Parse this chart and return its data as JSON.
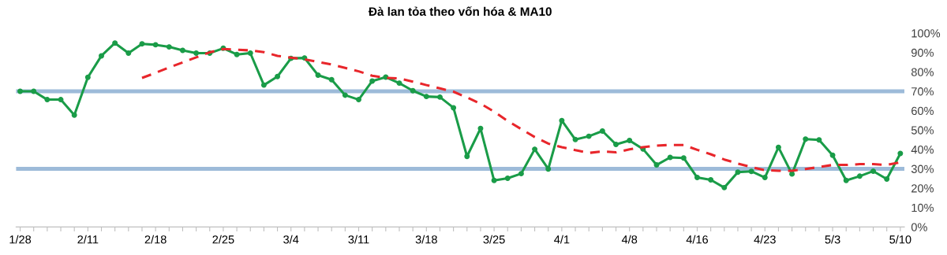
{
  "chart_data": {
    "type": "line",
    "title": "Đà lan tỏa theo vốn hóa & MA10",
    "categories": [
      "1/28",
      null,
      null,
      null,
      null,
      "2/11",
      null,
      null,
      null,
      null,
      "2/18",
      null,
      null,
      null,
      null,
      "2/25",
      null,
      null,
      null,
      null,
      "3/4",
      null,
      null,
      null,
      null,
      "3/11",
      null,
      null,
      null,
      null,
      "3/18",
      null,
      null,
      null,
      null,
      "3/25",
      null,
      null,
      null,
      null,
      "4/1",
      null,
      null,
      null,
      null,
      "4/8",
      null,
      null,
      null,
      null,
      "4/16",
      null,
      null,
      null,
      null,
      "4/23",
      null,
      null,
      null,
      null,
      "5/3",
      null,
      null,
      null,
      null,
      "5/10"
    ],
    "series": [
      {
        "color": "#1a9c48",
        "marker": "circle",
        "line_style": "solid",
        "values": [
          70,
          70,
          65.7,
          65.7,
          57.7,
          77.2,
          88.3,
          94.9,
          89.7,
          94.5,
          94.0,
          92.9,
          91.1,
          89.7,
          89.7,
          92.2,
          89.0,
          89.7,
          73.2,
          77.6,
          87.0,
          87.2,
          78.3,
          76.0,
          68.0,
          65.7,
          75.3,
          77.3,
          74.2,
          70.3,
          67.3,
          67.0,
          61.5,
          36.4,
          50.8,
          24.0,
          25.1,
          27.5,
          40.1,
          29.9,
          54.9,
          45.1,
          46.8,
          49.5,
          42.6,
          44.6,
          40.2,
          32.0,
          35.9,
          35.6,
          25.5,
          24.3,
          20.3,
          28.3,
          28.7,
          25.5,
          41.1,
          27.3,
          45.3,
          44.9,
          37.0,
          24.0,
          26.2,
          28.8,
          24.7,
          37.9
        ]
      },
      {
        "color": "#e8262b",
        "marker": "none",
        "line_style": "dashed",
        "values": [
          null,
          null,
          null,
          null,
          null,
          null,
          null,
          null,
          null,
          76.9,
          79.5,
          82.3,
          84.9,
          87.5,
          90.1,
          91.8,
          91.5,
          91.1,
          90.2,
          88.3,
          87.4,
          86.5,
          85.2,
          83.8,
          82.1,
          80.3,
          78.0,
          76.9,
          76.6,
          75.0,
          73.2,
          71.5,
          69.8,
          66.8,
          63.6,
          59.5,
          54.7,
          50.5,
          46.4,
          43.0,
          41.2,
          39.6,
          38.2,
          39.0,
          38.5,
          40.0,
          41.2,
          42.0,
          42.3,
          42.3,
          39.8,
          37.5,
          34.8,
          32.7,
          30.9,
          29.3,
          29.0,
          29.0,
          29.9,
          30.9,
          32.0,
          32.0,
          32.4,
          32.4,
          32.0,
          33.4
        ]
      }
    ],
    "ylim": [
      0,
      100
    ],
    "yticks": [
      {
        "value": 0,
        "label": "0%"
      },
      {
        "value": 10,
        "label": "10%"
      },
      {
        "value": 20,
        "label": "20%"
      },
      {
        "value": 30,
        "label": "30%"
      },
      {
        "value": 40,
        "label": "40%"
      },
      {
        "value": 50,
        "label": "50%"
      },
      {
        "value": 60,
        "label": "60%"
      },
      {
        "value": 70,
        "label": "70%"
      },
      {
        "value": 80,
        "label": "80%"
      },
      {
        "value": 90,
        "label": "90%"
      },
      {
        "value": 100,
        "label": "100%"
      }
    ],
    "ref_lines": [
      {
        "axis": "y",
        "value": 70,
        "color": "#9dbbd9"
      },
      {
        "axis": "y",
        "value": 30,
        "color": "#9dbbd9"
      }
    ],
    "grid": false,
    "legend": false
  }
}
